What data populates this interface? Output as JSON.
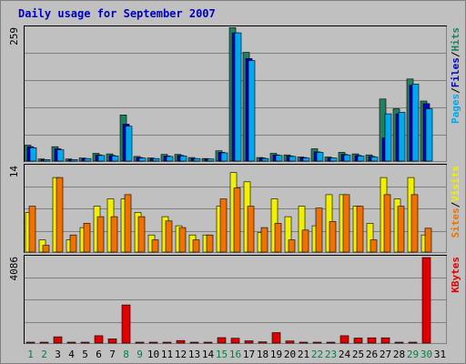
{
  "chart_data": {
    "type": "bar",
    "title": "Daily usage for September 2007",
    "days": [
      "1",
      "2",
      "3",
      "4",
      "5",
      "6",
      "7",
      "8",
      "9",
      "10",
      "11",
      "12",
      "13",
      "14",
      "15",
      "16",
      "17",
      "18",
      "19",
      "20",
      "21",
      "22",
      "23",
      "24",
      "25",
      "26",
      "27",
      "28",
      "29",
      "30",
      "31"
    ],
    "weekend_days": [
      "1",
      "2",
      "8",
      "9",
      "15",
      "16",
      "22",
      "23",
      "29",
      "30"
    ],
    "panels": [
      {
        "id": "hits",
        "max_label": "259",
        "ylim": [
          0,
          259
        ],
        "legend": [
          {
            "text": "Pages",
            "color": "#00a8f0"
          },
          {
            "text": "/",
            "color": "#000000"
          },
          {
            "text": "Files",
            "color": "#0000c0"
          },
          {
            "text": "/",
            "color": "#000000"
          },
          {
            "text": "Hits",
            "color": "#208060"
          }
        ],
        "series": [
          {
            "name": "Hits",
            "color": "#208060",
            "values": [
              31,
              4,
              28,
              4,
              6,
              15,
              14,
              90,
              9,
              6,
              13,
              13,
              7,
              5,
              20,
              260,
              212,
              7,
              15,
              12,
              8,
              24,
              8,
              17,
              14,
              12,
              121,
              102,
              160,
              117,
              0
            ]
          },
          {
            "name": "Files",
            "color": "#0000c0",
            "values": [
              28,
              3,
              24,
              3,
              5,
              12,
              11,
              72,
              7,
              5,
              10,
              11,
              5,
              4,
              17,
              250,
              200,
              6,
              12,
              10,
              7,
              18,
              6,
              13,
              11,
              9,
              45,
              92,
              148,
              112,
              0
            ]
          },
          {
            "name": "Pages",
            "color": "#00a8f0",
            "values": [
              26,
              3,
              22,
              3,
              5,
              11,
              10,
              68,
              6,
              5,
              9,
              10,
              5,
              4,
              16,
              250,
              196,
              5,
              11,
              9,
              6,
              17,
              6,
              12,
              10,
              8,
              92,
              95,
              150,
              102,
              0
            ]
          }
        ]
      },
      {
        "id": "visits",
        "max_label": "14",
        "ylim": [
          0,
          14
        ],
        "legend": [
          {
            "text": "Sites",
            "color": "#f07000"
          },
          {
            "text": "/",
            "color": "#000000"
          },
          {
            "text": "Visits",
            "color": "#f0f000"
          }
        ],
        "series": [
          {
            "name": "Visits",
            "color": "#f0f000",
            "values": [
              6.5,
              2,
              12.2,
              2,
              4,
              7.5,
              8.7,
              8.7,
              6.5,
              2.8,
              5.8,
              4.3,
              2.8,
              2.8,
              7.5,
              13,
              11.5,
              3.2,
              8.7,
              5.8,
              7.5,
              4.3,
              9.4,
              9.4,
              7.5,
              4.7,
              12.2,
              8.7,
              12.2,
              2.8,
              0
            ]
          },
          {
            "name": "Sites",
            "color": "#f07000",
            "values": [
              7.5,
              1.1,
              12.2,
              2.8,
              4.7,
              5.8,
              5.8,
              9.4,
              5.8,
              2,
              5.1,
              4,
              2,
              2.8,
              8.7,
              10.5,
              7.5,
              4,
              4.7,
              2,
              3.6,
              7.2,
              5,
              9.4,
              7.5,
              2,
              9.4,
              7.5,
              9.4,
              3.9,
              0
            ]
          }
        ]
      },
      {
        "id": "kbytes",
        "max_label": "4086",
        "ylim": [
          0,
          4086
        ],
        "legend": [
          {
            "text": "KBytes",
            "color": "#e00000"
          }
        ],
        "series": [
          {
            "name": "KBytes",
            "color": "#e00000",
            "values": [
              40,
              40,
              300,
              40,
              40,
              350,
              200,
              1820,
              40,
              40,
              40,
              120,
              40,
              40,
              260,
              230,
              110,
              60,
              500,
              100,
              40,
              40,
              40,
              350,
              240,
              250,
              250,
              40,
              40,
              4086,
              0
            ]
          }
        ]
      }
    ],
    "grid": true
  }
}
